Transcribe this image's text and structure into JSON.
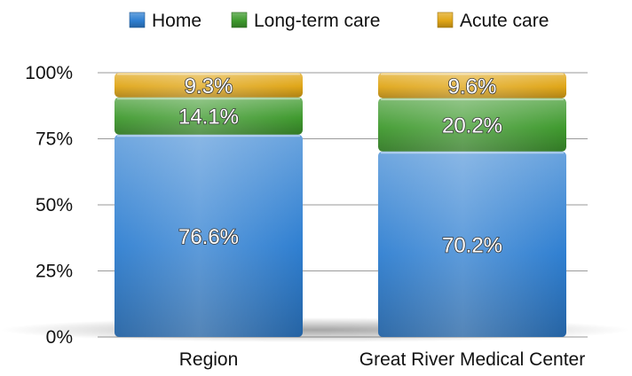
{
  "chart_data": {
    "type": "bar",
    "stacked": true,
    "categories": [
      "Region",
      "Great River Medical Center"
    ],
    "series": [
      {
        "name": "Home",
        "values": [
          76.6,
          70.2
        ],
        "labels": [
          "76.6%",
          "70.2%"
        ],
        "color": "#2f7fd1"
      },
      {
        "name": "Long-term care",
        "values": [
          14.1,
          20.2
        ],
        "labels": [
          "14.1%",
          "20.2%"
        ],
        "color": "#3f9a2e"
      },
      {
        "name": "Acute care",
        "values": [
          9.3,
          9.6
        ],
        "labels": [
          "9.3%",
          "9.6%"
        ],
        "color": "#e0a617"
      }
    ],
    "yticks": [
      {
        "value": 0,
        "label": "0%"
      },
      {
        "value": 25,
        "label": "25%"
      },
      {
        "value": 50,
        "label": "50%"
      },
      {
        "value": 75,
        "label": "75%"
      },
      {
        "value": 100,
        "label": "100%"
      }
    ],
    "ylim": [
      0,
      100
    ],
    "grid": true,
    "legend": "top"
  }
}
